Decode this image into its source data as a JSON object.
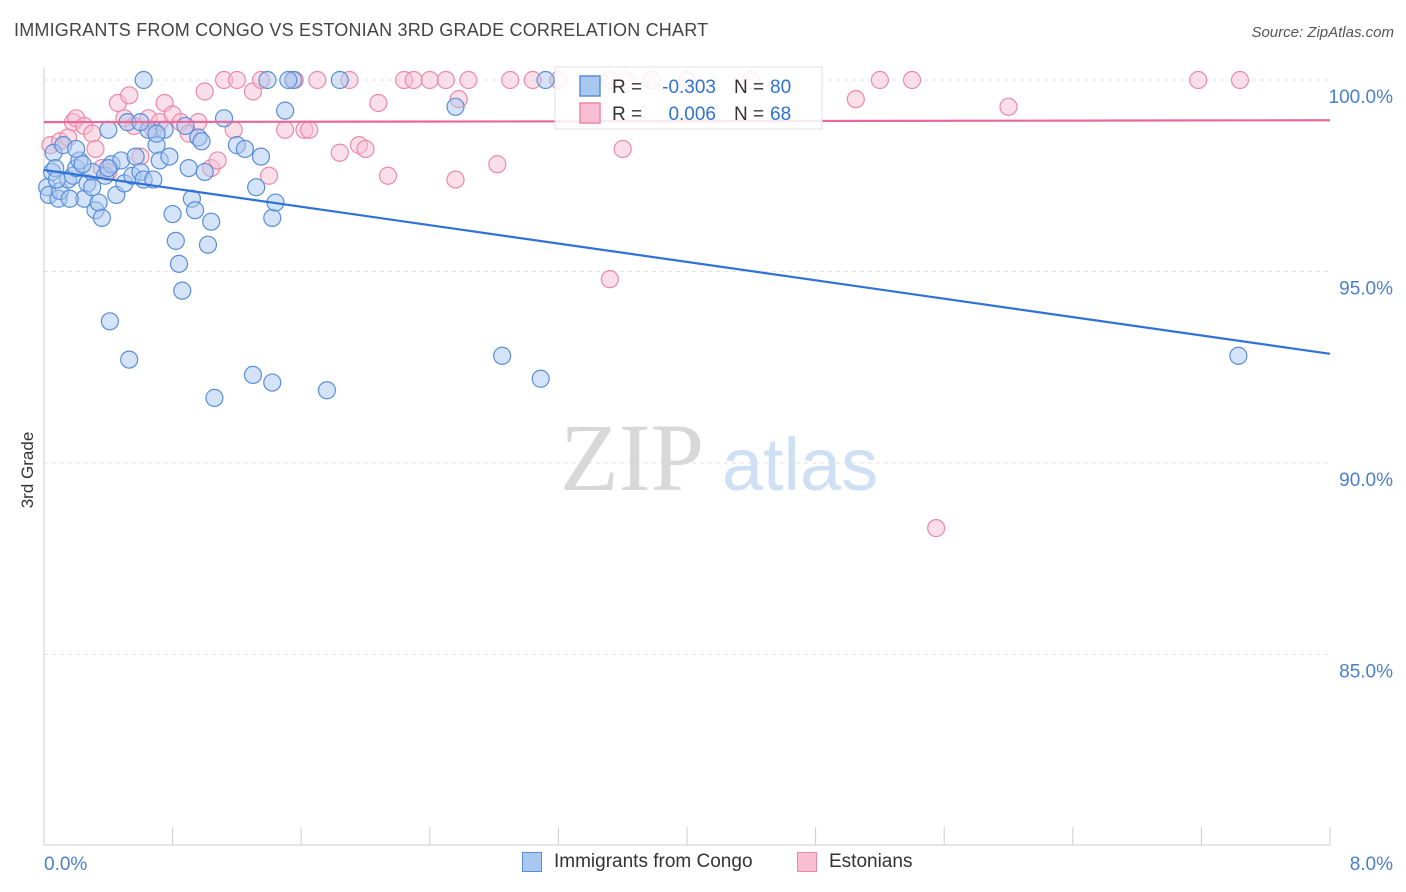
{
  "header": {
    "title": "IMMIGRANTS FROM CONGO VS ESTONIAN 3RD GRADE CORRELATION CHART",
    "source": "Source: ZipAtlas.com"
  },
  "watermark": {
    "zip": "ZIP",
    "atlas": "atlas"
  },
  "colors": {
    "blue_fill": "#a9c8f0",
    "blue_stroke": "#5a8ed8",
    "blue_line": "#2f72d6",
    "pink_fill": "#f8bfd2",
    "pink_stroke": "#ee88a8",
    "pink_line": "#e8689a",
    "tick_label": "#4a7fcf",
    "grid": "#e2e2e2"
  },
  "legend": {
    "r_label": "R =",
    "n_label": "N =",
    "rows": [
      {
        "r": "-0.303",
        "n": "80"
      },
      {
        "r": "0.006",
        "n": "68"
      }
    ]
  },
  "chart_data": {
    "type": "scatter",
    "title": "IMMIGRANTS FROM CONGO VS ESTONIAN 3RD GRADE CORRELATION CHART",
    "xlabel": "",
    "ylabel": "3rd Grade",
    "xlim": [
      0,
      8
    ],
    "ylim": [
      80.5,
      100.8
    ],
    "x_tick_labels": [
      "0.0%",
      "8.0%"
    ],
    "y_ticks": [
      100,
      95,
      90,
      85
    ],
    "y_tick_labels": [
      "100.0%",
      "95.0%",
      "90.0%",
      "85.0%"
    ],
    "grid": true,
    "legend_position": "top-center",
    "series": [
      {
        "name": "Immigrants from Congo",
        "r": -0.303,
        "n": 80,
        "trend": [
          [
            0,
            97.65
          ],
          [
            8,
            92.85
          ]
        ],
        "points": [
          [
            0.02,
            97.2
          ],
          [
            0.03,
            97.0
          ],
          [
            0.05,
            97.6
          ],
          [
            0.06,
            98.1
          ],
          [
            0.07,
            97.7
          ],
          [
            0.09,
            96.9
          ],
          [
            0.1,
            97.1
          ],
          [
            0.12,
            98.3
          ],
          [
            0.15,
            97.4
          ],
          [
            0.18,
            97.5
          ],
          [
            0.2,
            97.7
          ],
          [
            0.22,
            97.9
          ],
          [
            0.25,
            96.9
          ],
          [
            0.27,
            97.3
          ],
          [
            0.3,
            97.6
          ],
          [
            0.32,
            96.6
          ],
          [
            0.34,
            96.8
          ],
          [
            0.36,
            96.4
          ],
          [
            0.38,
            97.5
          ],
          [
            0.4,
            98.7
          ],
          [
            0.42,
            97.8
          ],
          [
            0.45,
            97.0
          ],
          [
            0.48,
            97.9
          ],
          [
            0.5,
            97.3
          ],
          [
            0.52,
            98.9
          ],
          [
            0.55,
            97.5
          ],
          [
            0.57,
            98.0
          ],
          [
            0.6,
            97.6
          ],
          [
            0.62,
            97.4
          ],
          [
            0.65,
            98.7
          ],
          [
            0.68,
            97.4
          ],
          [
            0.7,
            98.3
          ],
          [
            0.72,
            97.9
          ],
          [
            0.75,
            98.7
          ],
          [
            0.78,
            98.0
          ],
          [
            0.8,
            96.5
          ],
          [
            0.82,
            95.8
          ],
          [
            0.84,
            95.2
          ],
          [
            0.86,
            94.5
          ],
          [
            0.88,
            98.8
          ],
          [
            0.9,
            97.7
          ],
          [
            0.92,
            96.9
          ],
          [
            0.94,
            96.6
          ],
          [
            0.96,
            98.5
          ],
          [
            1.0,
            97.6
          ],
          [
            1.02,
            95.7
          ],
          [
            1.04,
            96.3
          ],
          [
            1.06,
            91.7
          ],
          [
            1.12,
            99.0
          ],
          [
            1.2,
            98.3
          ],
          [
            1.25,
            98.2
          ],
          [
            1.32,
            97.2
          ],
          [
            1.35,
            98.0
          ],
          [
            1.42,
            96.4
          ],
          [
            1.44,
            96.8
          ],
          [
            1.5,
            99.2
          ],
          [
            1.3,
            92.3
          ],
          [
            1.42,
            92.1
          ],
          [
            1.76,
            91.9
          ],
          [
            0.53,
            92.7
          ],
          [
            0.41,
            93.7
          ],
          [
            2.85,
            92.8
          ],
          [
            3.09,
            92.2
          ],
          [
            7.43,
            92.8
          ],
          [
            0.62,
            100.0
          ],
          [
            1.39,
            100.0
          ],
          [
            1.55,
            100.0
          ],
          [
            1.84,
            100.0
          ],
          [
            3.12,
            100.0
          ],
          [
            2.56,
            99.3
          ],
          [
            0.2,
            98.2
          ],
          [
            0.3,
            97.2
          ],
          [
            0.16,
            96.9
          ],
          [
            0.08,
            97.4
          ],
          [
            0.4,
            97.7
          ],
          [
            0.6,
            98.9
          ],
          [
            0.24,
            97.8
          ],
          [
            1.52,
            100.0
          ],
          [
            0.7,
            98.6
          ],
          [
            0.98,
            98.4
          ]
        ]
      },
      {
        "name": "Estonians",
        "r": 0.006,
        "n": 68,
        "trend": [
          [
            0,
            98.9
          ],
          [
            8,
            98.95
          ]
        ],
        "points": [
          [
            0.04,
            98.3
          ],
          [
            0.1,
            98.4
          ],
          [
            0.15,
            98.5
          ],
          [
            0.18,
            98.9
          ],
          [
            0.2,
            99.0
          ],
          [
            0.25,
            98.8
          ],
          [
            0.3,
            98.6
          ],
          [
            0.32,
            98.2
          ],
          [
            0.36,
            97.7
          ],
          [
            0.4,
            97.6
          ],
          [
            0.46,
            99.4
          ],
          [
            0.5,
            99.0
          ],
          [
            0.53,
            99.6
          ],
          [
            0.56,
            98.8
          ],
          [
            0.6,
            98.0
          ],
          [
            0.65,
            99.0
          ],
          [
            0.68,
            98.7
          ],
          [
            0.72,
            98.9
          ],
          [
            0.75,
            99.4
          ],
          [
            0.8,
            99.1
          ],
          [
            0.85,
            98.9
          ],
          [
            0.9,
            98.6
          ],
          [
            0.96,
            98.9
          ],
          [
            1.0,
            99.7
          ],
          [
            1.04,
            97.7
          ],
          [
            1.08,
            97.9
          ],
          [
            1.12,
            100.0
          ],
          [
            1.18,
            98.7
          ],
          [
            1.2,
            100.0
          ],
          [
            1.3,
            99.7
          ],
          [
            1.35,
            100.0
          ],
          [
            1.4,
            97.5
          ],
          [
            1.5,
            98.7
          ],
          [
            1.56,
            100.0
          ],
          [
            1.62,
            98.7
          ],
          [
            1.7,
            100.0
          ],
          [
            1.84,
            98.1
          ],
          [
            1.9,
            100.0
          ],
          [
            1.96,
            98.3
          ],
          [
            2.0,
            98.2
          ],
          [
            2.08,
            99.4
          ],
          [
            2.14,
            97.5
          ],
          [
            2.24,
            100.0
          ],
          [
            2.3,
            100.0
          ],
          [
            2.4,
            100.0
          ],
          [
            2.5,
            100.0
          ],
          [
            2.56,
            97.4
          ],
          [
            2.58,
            99.5
          ],
          [
            2.64,
            100.0
          ],
          [
            2.82,
            97.8
          ],
          [
            2.9,
            100.0
          ],
          [
            3.04,
            100.0
          ],
          [
            3.2,
            100.0
          ],
          [
            3.52,
            100.0
          ],
          [
            3.6,
            98.2
          ],
          [
            3.62,
            100.0
          ],
          [
            3.78,
            100.0
          ],
          [
            4.0,
            100.0
          ],
          [
            4.4,
            100.0
          ],
          [
            5.05,
            99.5
          ],
          [
            5.2,
            100.0
          ],
          [
            5.4,
            100.0
          ],
          [
            6.0,
            99.3
          ],
          [
            7.18,
            100.0
          ],
          [
            7.44,
            100.0
          ],
          [
            3.52,
            94.8
          ],
          [
            5.55,
            88.3
          ],
          [
            1.65,
            98.7
          ]
        ]
      }
    ]
  }
}
